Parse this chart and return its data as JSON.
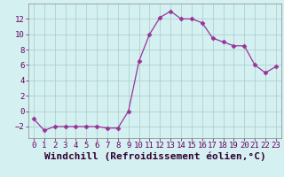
{
  "x": [
    0,
    1,
    2,
    3,
    4,
    5,
    6,
    7,
    8,
    9,
    10,
    11,
    12,
    13,
    14,
    15,
    16,
    17,
    18,
    19,
    20,
    21,
    22,
    23
  ],
  "y": [
    -1.0,
    -2.5,
    -2.0,
    -2.0,
    -2.0,
    -2.0,
    -2.0,
    -2.2,
    -2.2,
    0.0,
    6.5,
    10.0,
    12.2,
    13.0,
    12.0,
    12.0,
    11.5,
    9.5,
    9.0,
    8.5,
    8.5,
    6.0,
    5.0,
    5.8
  ],
  "line_color": "#993399",
  "marker": "D",
  "marker_size": 2.5,
  "bg_color": "#d4f0f0",
  "grid_color": "#aacccc",
  "xlabel": "Windchill (Refroidissement éolien,°C)",
  "xlabel_fontsize": 8,
  "ylim": [
    -3.5,
    14
  ],
  "xlim": [
    -0.5,
    23.5
  ],
  "yticks": [
    -2,
    0,
    2,
    4,
    6,
    8,
    10,
    12
  ],
  "xticks": [
    0,
    1,
    2,
    3,
    4,
    5,
    6,
    7,
    8,
    9,
    10,
    11,
    12,
    13,
    14,
    15,
    16,
    17,
    18,
    19,
    20,
    21,
    22,
    23
  ],
  "tick_fontsize": 6.5
}
